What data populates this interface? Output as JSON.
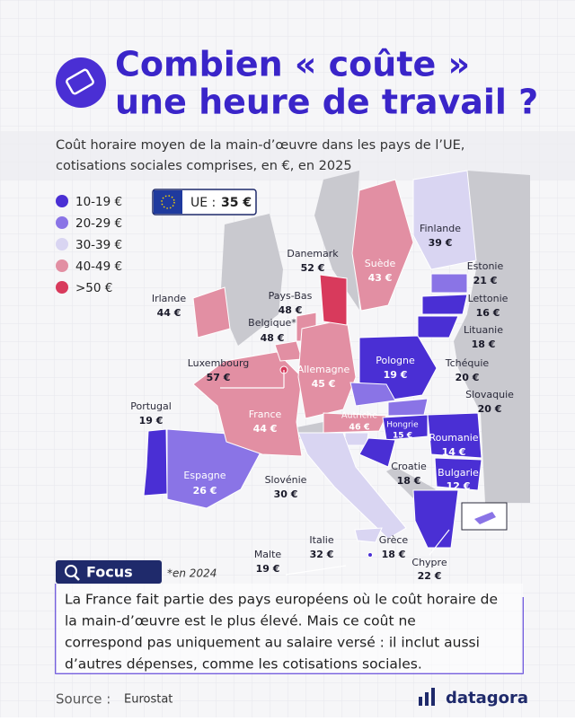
{
  "header": {
    "title_line1": "Combien « coûte »",
    "title_line2": "une heure de travail ?",
    "subtitle_line1": "Coût horaire moyen de la main-d’œuvre dans les pays de l’UE,",
    "subtitle_line2": "cotisations sociales comprises, en €, en 2025"
  },
  "legend": [
    "10-19 €",
    "20-29 €",
    "30-39 €",
    "40-49 €",
    ">50 €"
  ],
  "eu_average": {
    "label": "UE :",
    "value": "35 €"
  },
  "countries": [
    {
      "name": "Finlande",
      "cost": "39 €"
    },
    {
      "name": "Danemark",
      "cost": "52 €"
    },
    {
      "name": "Suède",
      "cost": "43 €"
    },
    {
      "name": "Estonie",
      "cost": "21 €"
    },
    {
      "name": "Irlande",
      "cost": "44 €"
    },
    {
      "name": "Pays-Bas",
      "cost": "48 €"
    },
    {
      "name": "Lettonie",
      "cost": "16 €"
    },
    {
      "name": "Belgique*",
      "cost": "48 €"
    },
    {
      "name": "Lituanie",
      "cost": "18 €"
    },
    {
      "name": "Luxembourg",
      "cost": "57 €"
    },
    {
      "name": "Pologne",
      "cost": "19 €"
    },
    {
      "name": "Allemagne",
      "cost": "45 €"
    },
    {
      "name": "Tchéquie",
      "cost": "20 €"
    },
    {
      "name": "Slovaquie",
      "cost": "20 €"
    },
    {
      "name": "Portugal",
      "cost": "19 €"
    },
    {
      "name": "France",
      "cost": "44 €"
    },
    {
      "name": "Autriche",
      "cost": "46 €"
    },
    {
      "name": "Hongrie",
      "cost": "15 €"
    },
    {
      "name": "Roumanie",
      "cost": "14 €"
    },
    {
      "name": "Croatie",
      "cost": "18 €"
    },
    {
      "name": "Bulgarie",
      "cost": "12 €"
    },
    {
      "name": "Espagne",
      "cost": "26 €"
    },
    {
      "name": "Slovénie",
      "cost": "30 €"
    },
    {
      "name": "Italie",
      "cost": "32 €"
    },
    {
      "name": "Grèce",
      "cost": "18 €"
    },
    {
      "name": "Malte",
      "cost": "19 €"
    },
    {
      "name": "Chypre",
      "cost": "22 €"
    }
  ],
  "focus": {
    "title": "Focus",
    "note": "*en 2024",
    "text": [
      "La France fait partie des pays européens où le coût horaire de",
      "la main-d’œuvre est le plus élevé. Mais ce coût ne",
      "correspond pas uniquement au salaire versé : il inclut aussi",
      "d’autres dépenses, comme les cotisations sociales."
    ]
  },
  "footer": {
    "source_label": "Source :",
    "source": "Eurostat",
    "brand": "datagora"
  }
}
